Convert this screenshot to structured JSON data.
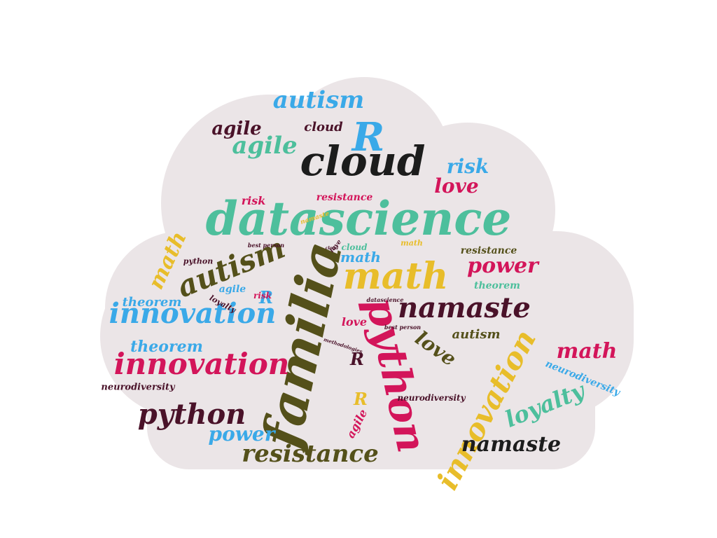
{
  "colors": {
    "cloud_fill": "#ebe5e7",
    "dark": "#1c1c1c",
    "maroon": "#4a1229",
    "olive": "#54501a",
    "green": "#4dbf9c",
    "blue": "#3aa9e8",
    "yellow": "#e8bd2a",
    "pink": "#d3155a"
  },
  "words": [
    {
      "text": "datascience",
      "color": "#4dbf9c"
    },
    {
      "text": "familia",
      "color": "#54501a"
    },
    {
      "text": "python",
      "color": "#d3155a"
    },
    {
      "text": "cloud",
      "color": "#1c1c1c"
    },
    {
      "text": "R",
      "color": "#3aa9e8"
    },
    {
      "text": "math",
      "color": "#e8bd2a"
    },
    {
      "text": "namaste",
      "color": "#4a1229"
    },
    {
      "text": "innovation",
      "color": "#d3155a"
    },
    {
      "text": "innovation",
      "color": "#3aa9e8"
    },
    {
      "text": "innovation",
      "color": "#e8bd2a"
    },
    {
      "text": "autism",
      "color": "#54501a"
    },
    {
      "text": "autism",
      "color": "#3aa9e8"
    },
    {
      "text": "agile",
      "color": "#4dbf9c"
    },
    {
      "text": "agile",
      "color": "#4a1229"
    },
    {
      "text": "love",
      "color": "#d3155a"
    },
    {
      "text": "risk",
      "color": "#3aa9e8"
    },
    {
      "text": "power",
      "color": "#d3155a"
    },
    {
      "text": "python",
      "color": "#4a1229"
    },
    {
      "text": "resistance",
      "color": "#54501a"
    },
    {
      "text": "loyalty",
      "color": "#4dbf9c"
    },
    {
      "text": "namaste",
      "color": "#1c1c1c"
    },
    {
      "text": "math",
      "color": "#d3155a"
    },
    {
      "text": "math",
      "color": "#e8bd2a"
    },
    {
      "text": "love",
      "color": "#54501a"
    },
    {
      "text": "theorem",
      "color": "#3aa9e8"
    },
    {
      "text": "power",
      "color": "#3aa9e8"
    },
    {
      "text": "autism",
      "color": "#54501a"
    },
    {
      "text": "theorem",
      "color": "#3aa9e8"
    },
    {
      "text": "cloud",
      "color": "#4a1229"
    },
    {
      "text": "R",
      "color": "#3aa9e8"
    },
    {
      "text": "R",
      "color": "#e8bd2a"
    },
    {
      "text": "R",
      "color": "#4a1229"
    },
    {
      "text": "neurodiversity",
      "color": "#4a1229"
    },
    {
      "text": "neurodiversity",
      "color": "#3aa9e8"
    },
    {
      "text": "neurodiversity",
      "color": "#4a1229"
    },
    {
      "text": "risk",
      "color": "#d3155a"
    },
    {
      "text": "agile",
      "color": "#d3155a"
    },
    {
      "text": "resistance",
      "color": "#54501a"
    },
    {
      "text": "theorem",
      "color": "#4dbf9c"
    },
    {
      "text": "agile",
      "color": "#3aa9e8"
    },
    {
      "text": "loyalty",
      "color": "#4a1229"
    },
    {
      "text": "love",
      "color": "#d3155a"
    },
    {
      "text": "math",
      "color": "#3aa9e8"
    },
    {
      "text": "python",
      "color": "#4a1229"
    },
    {
      "text": "risk",
      "color": "#d3155a"
    },
    {
      "text": "namaste",
      "color": "#e8bd2a"
    },
    {
      "text": "resistance",
      "color": "#d3155a"
    },
    {
      "text": "cloud",
      "color": "#4dbf9c"
    },
    {
      "text": "love",
      "color": "#4a1229"
    },
    {
      "text": "math",
      "color": "#e8bd2a"
    },
    {
      "text": "best person",
      "color": "#4a1229"
    },
    {
      "text": "datascience",
      "color": "#4a1229"
    },
    {
      "text": "methodologies",
      "color": "#4a1229"
    },
    {
      "text": "best person",
      "color": "#4a1229"
    },
    {
      "text": "cloud",
      "color": "#4a1229"
    }
  ]
}
